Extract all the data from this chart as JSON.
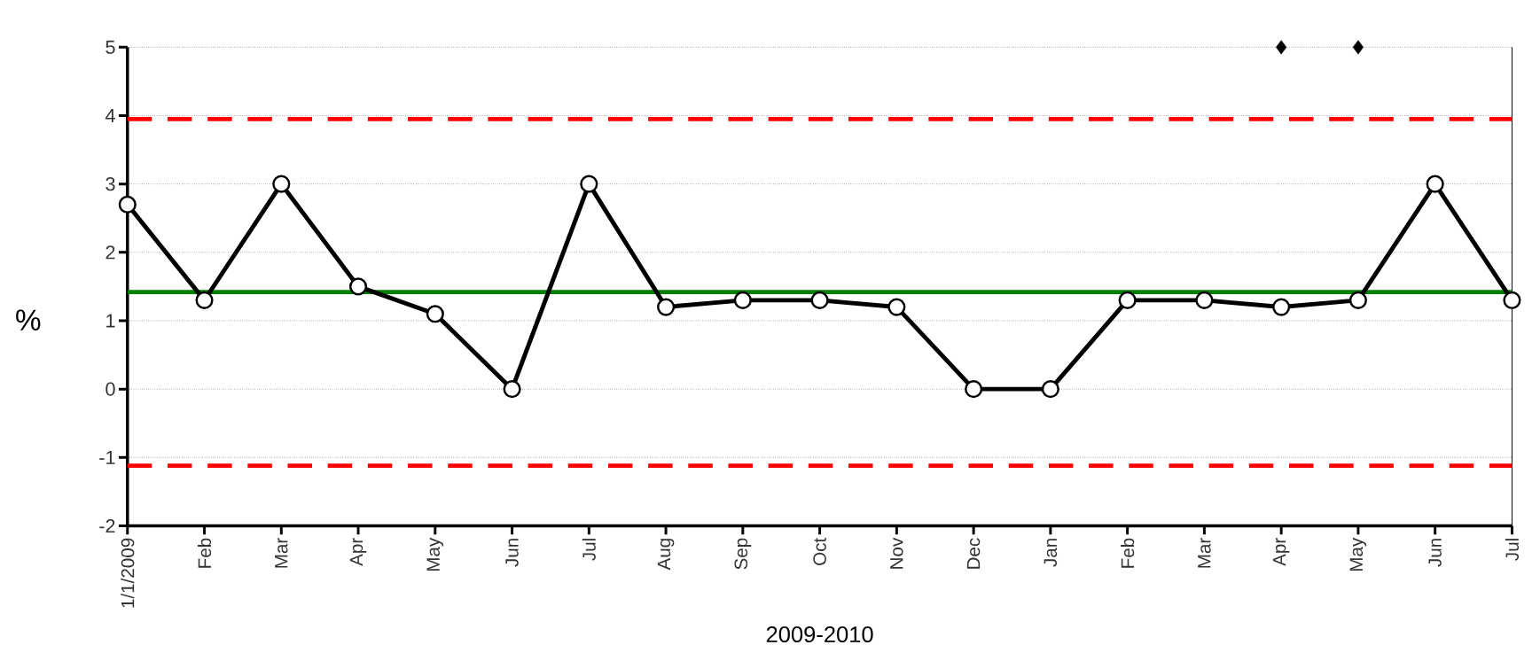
{
  "chart_data": {
    "type": "line",
    "xlabel": "2009-2010",
    "ylabel": "%",
    "categories": [
      "1/1/2009",
      "Feb",
      "Mar",
      "Apr",
      "May",
      "Jun",
      "Jul",
      "Aug",
      "Sep",
      "Oct",
      "Nov",
      "Dec",
      "Jan",
      "Feb",
      "Mar",
      "Apr",
      "May",
      "Jun",
      "Jul"
    ],
    "series": [
      {
        "color": "#000000",
        "marker": "circle",
        "values": [
          2.7,
          1.3,
          3.0,
          1.5,
          1.1,
          0,
          3.0,
          1.2,
          1.3,
          1.3,
          1.2,
          0,
          0,
          1.3,
          1.3,
          1.2,
          1.3,
          3.0,
          1.3
        ]
      },
      {
        "type": "scatter",
        "color": "#000000",
        "marker": "diamond",
        "values": [
          null,
          null,
          null,
          null,
          null,
          null,
          null,
          null,
          null,
          null,
          null,
          null,
          null,
          null,
          null,
          5,
          5,
          null,
          null
        ]
      }
    ],
    "ylim": [
      -2,
      5
    ],
    "yticks": [
      -2,
      -1,
      0,
      1,
      2,
      3,
      4,
      5
    ],
    "grid": "y",
    "ref_lines": [
      {
        "axis": "y",
        "value": 3.95,
        "color": "#ff0000",
        "line_style": "dashed"
      },
      {
        "axis": "y",
        "value": -1.12,
        "color": "#ff0000",
        "line_style": "dashed"
      },
      {
        "axis": "y",
        "value": 1.42,
        "color": "#008000",
        "line_style": "solid"
      }
    ]
  }
}
